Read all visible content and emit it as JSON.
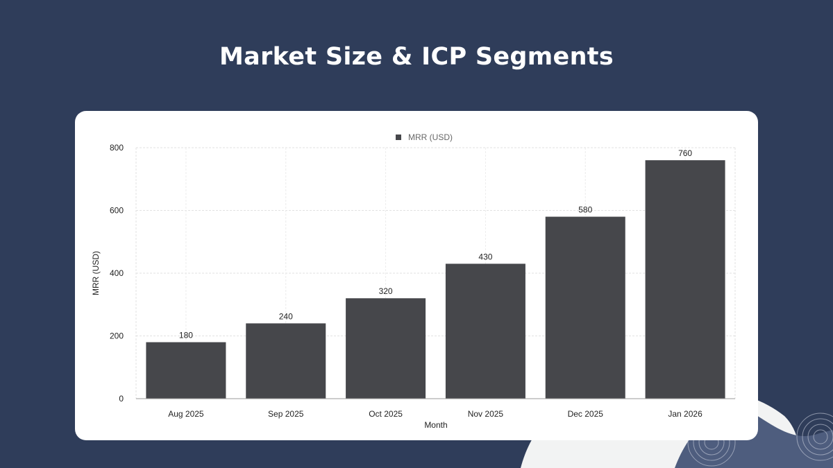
{
  "slide": {
    "title": "Market Size & ICP Segments"
  },
  "colors": {
    "background": "#2f3d5a",
    "bar": "#46474b",
    "card": "#ffffff",
    "accent_shape": "#4e5d7e",
    "light_shape": "#f2f3f3"
  },
  "chart_data": {
    "type": "bar",
    "categories": [
      "Aug 2025",
      "Sep 2025",
      "Oct 2025",
      "Nov 2025",
      "Dec 2025",
      "Jan 2026"
    ],
    "series": [
      {
        "name": "MRR (USD)",
        "values": [
          180,
          240,
          320,
          430,
          580,
          760
        ]
      }
    ],
    "data_labels": [
      "180",
      "240",
      "320",
      "430",
      "580",
      "760"
    ],
    "xlabel": "Month",
    "ylabel": "MRR (USD)",
    "ylim": [
      0,
      800
    ],
    "yticks": [
      0,
      200,
      400,
      600,
      800
    ],
    "grid": true,
    "legend": "top-center"
  }
}
